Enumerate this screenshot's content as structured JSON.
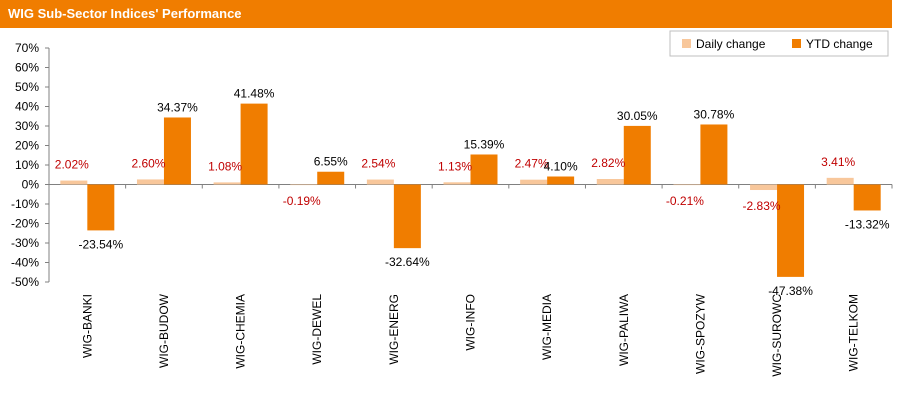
{
  "title": "WIG Sub-Sector Indices' Performance",
  "colors": {
    "header": "#f07d00",
    "daily": "#f8c79b",
    "ytd": "#f07d00",
    "daily_label": "#c00000",
    "ytd_label": "#000000"
  },
  "chart_data": {
    "type": "bar",
    "categories": [
      "WIG-BANKI",
      "WIG-BUDOW",
      "WIG-CHEMIA",
      "WIG-DEWEL",
      "WIG-ENERG",
      "WIG-INFO",
      "WIG-MEDIA",
      "WIG-PALIWA",
      "WIG-SPOZYW",
      "WIG-SUROWC",
      "WIG-TELKOM"
    ],
    "series": [
      {
        "name": "Daily change",
        "values": [
          2.02,
          2.6,
          1.08,
          -0.19,
          2.54,
          1.13,
          2.47,
          2.82,
          -0.21,
          -2.83,
          3.41
        ],
        "labels": [
          "2.02%",
          "2.60%",
          "1.08%",
          "-0.19%",
          "2.54%",
          "1.13%",
          "2.47%",
          "2.82%",
          "-0.21%",
          "-2.83%",
          "3.41%"
        ]
      },
      {
        "name": "YTD change",
        "values": [
          -23.54,
          34.37,
          41.48,
          6.55,
          -32.64,
          15.39,
          4.1,
          30.05,
          30.78,
          -47.38,
          -13.32
        ],
        "labels": [
          "-23.54%",
          "34.37%",
          "41.48%",
          "6.55%",
          "-32.64%",
          "15.39%",
          "4.10%",
          "30.05%",
          "30.78%",
          "-47.38%",
          "-13.32%"
        ]
      }
    ],
    "ylim": [
      -50,
      70
    ],
    "yticks": [
      -50,
      -40,
      -30,
      -20,
      -10,
      0,
      10,
      20,
      30,
      40,
      50,
      60,
      70
    ],
    "ytick_labels": [
      "-50%",
      "-40%",
      "-30%",
      "-20%",
      "-10%",
      "0%",
      "10%",
      "20%",
      "30%",
      "40%",
      "50%",
      "60%",
      "70%"
    ],
    "grid": false,
    "legend": "top-right"
  }
}
